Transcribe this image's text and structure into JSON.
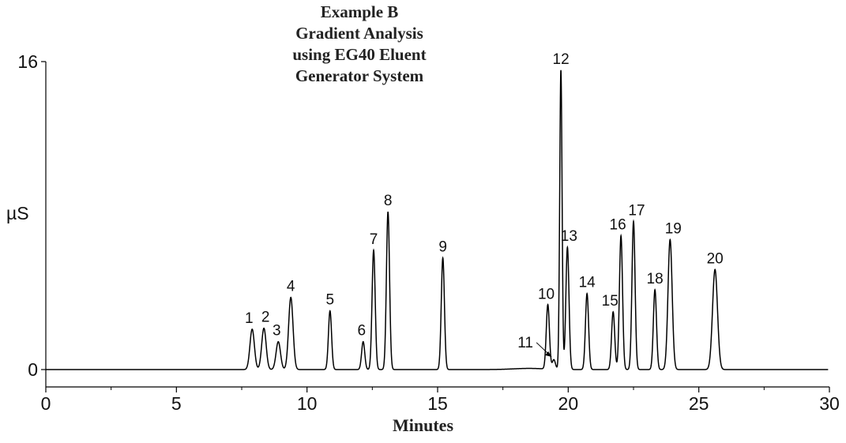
{
  "chart_data": {
    "type": "line",
    "title_lines": [
      "Example B",
      "Gradient Analysis",
      "using EG40 Eluent",
      "Generator System"
    ],
    "xlabel": "Minutes",
    "ylabel": "µS",
    "xlim": [
      0,
      30
    ],
    "ylim": [
      0,
      16
    ],
    "x_ticks": [
      0,
      5,
      10,
      15,
      20,
      25,
      30
    ],
    "y_ticks": [
      0,
      16
    ],
    "grid": false,
    "series": [
      {
        "baseline": 0,
        "peaks": [
          {
            "label": "1",
            "x": 7.9,
            "y": 2.1
          },
          {
            "label": "2",
            "x": 8.35,
            "y": 2.15
          },
          {
            "label": "3",
            "x": 8.9,
            "y": 1.45
          },
          {
            "label": "4",
            "x": 9.38,
            "y": 3.75
          },
          {
            "label": "5",
            "x": 10.88,
            "y": 3.05
          },
          {
            "label": "6",
            "x": 12.15,
            "y": 1.45
          },
          {
            "label": "7",
            "x": 12.55,
            "y": 6.2
          },
          {
            "label": "8",
            "x": 13.1,
            "y": 8.2
          },
          {
            "label": "9",
            "x": 15.2,
            "y": 5.8
          },
          {
            "label": "10",
            "x": 19.22,
            "y": 3.35
          },
          {
            "label": "11",
            "x": 19.45,
            "y": 0.5
          },
          {
            "label": "12",
            "x": 19.72,
            "y": 15.55
          },
          {
            "label": "13",
            "x": 19.97,
            "y": 6.35
          },
          {
            "label": "14",
            "x": 20.72,
            "y": 3.95
          },
          {
            "label": "15",
            "x": 21.72,
            "y": 3.0
          },
          {
            "label": "16",
            "x": 22.02,
            "y": 6.95
          },
          {
            "label": "17",
            "x": 22.5,
            "y": 7.7
          },
          {
            "label": "18",
            "x": 23.32,
            "y": 4.15
          },
          {
            "label": "19",
            "x": 23.9,
            "y": 6.75
          },
          {
            "label": "20",
            "x": 25.62,
            "y": 5.2
          }
        ]
      }
    ]
  }
}
